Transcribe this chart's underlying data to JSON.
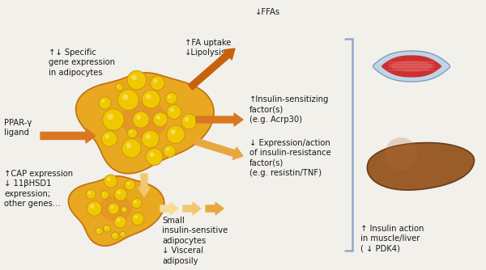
{
  "bg_color": "#f2f0eb",
  "arrow_dark": "#c8620a",
  "arrow_mid": "#d97820",
  "arrow_light": "#e8a840",
  "arrow_pale": "#f0c870",
  "arrow_palest": "#f5dc98",
  "adipo_outer": "#e8a820",
  "adipo_edge": "#c07010",
  "adipo_highlight": "#f5c830",
  "bubble_fill": "#f0c800",
  "bubble_edge": "#c89010",
  "muscle_blue": "#b8d0e8",
  "muscle_blue_edge": "#7090b0",
  "muscle_red": "#cc3030",
  "muscle_light_red": "#e86060",
  "muscle_pink": "#f09090",
  "liver_fill": "#9a5c28",
  "liver_edge": "#6a3c18",
  "liver_highlight": "#b87040",
  "bracket_color": "#90a8c8",
  "text_color": "#1a1a1a",
  "texts": {
    "ppar": "PPAR-γ\nligand",
    "specific_gene": "↑↓ Specific\ngene expression\nin adipocytes",
    "fa_uptake": "↑FA uptake\n↓Lipolysis",
    "ffas": "↓FFAs",
    "sensitizing": "↑Insulin-sensitizing\nfactor(s)\n(e.g. Acrp30)",
    "resistance": "↓ Expression/action\nof insulin-resistance\nfactor(s)\n(e.g. resistin/TNF)",
    "cap": "↑CAP expression\n↓ 11βHSD1\nexpression;\nother genes...",
    "small_adipo": "Small\ninsulin-sensitive\nadipocytes\n↓ Visceral\nadiposily",
    "insulin_action": "↑ Insulin action\nin muscle/liver\n( ↓ PDK4)"
  }
}
